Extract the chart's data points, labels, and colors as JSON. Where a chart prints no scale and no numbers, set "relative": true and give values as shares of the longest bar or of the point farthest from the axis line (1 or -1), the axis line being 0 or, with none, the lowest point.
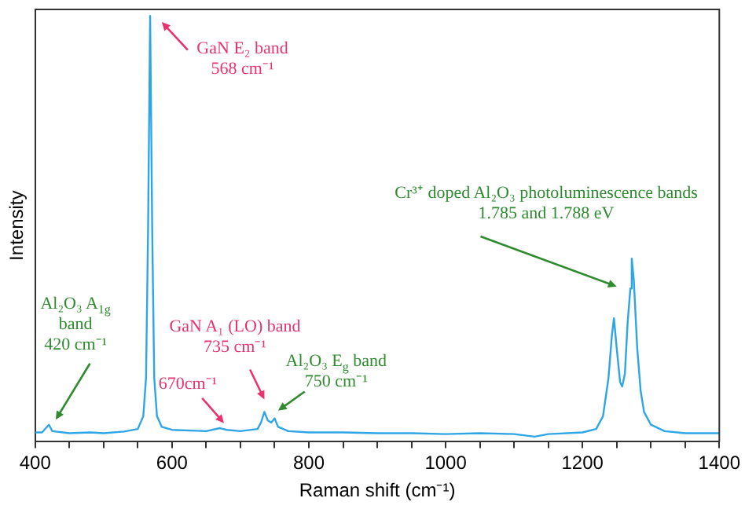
{
  "chart_data": {
    "type": "line",
    "relative": true,
    "xlabel": "Raman shift (cm⁻¹)",
    "ylabel": "Intensity",
    "xlim": [
      400,
      1400
    ],
    "xticks": [
      400,
      {
        "value": 450,
        "label": null
      },
      {
        "value": 500,
        "label": null
      },
      {
        "value": 550,
        "label": null
      },
      600,
      {
        "value": 650,
        "label": null
      },
      {
        "value": 700,
        "label": null
      },
      {
        "value": 750,
        "label": null
      },
      800,
      {
        "value": 850,
        "label": null
      },
      {
        "value": 900,
        "label": null
      },
      {
        "value": 950,
        "label": null
      },
      1000,
      {
        "value": 1050,
        "label": null
      },
      {
        "value": 1100,
        "label": null
      },
      {
        "value": 1150,
        "label": null
      },
      1200,
      {
        "value": 1250,
        "label": null
      },
      {
        "value": 1300,
        "label": null
      },
      {
        "value": 1350,
        "label": null
      },
      1400
    ],
    "grid": false,
    "legend": false,
    "marker": "none",
    "series": [
      {
        "color": "#2ea6e6",
        "x": [
          400,
          410,
          420,
          425,
          450,
          480,
          500,
          530,
          550,
          558,
          562,
          565,
          568,
          571,
          574,
          578,
          585,
          600,
          650,
          670,
          680,
          700,
          725,
          730,
          735,
          740,
          745,
          750,
          755,
          770,
          800,
          850,
          900,
          950,
          1000,
          1050,
          1100,
          1130,
          1150,
          1200,
          1220,
          1230,
          1238,
          1243,
          1246,
          1250,
          1255,
          1258,
          1262,
          1266,
          1270,
          1272,
          1275,
          1280,
          1285,
          1290,
          1300,
          1320,
          1350,
          1400
        ],
        "values": [
          0.022,
          0.022,
          0.04,
          0.025,
          0.02,
          0.022,
          0.02,
          0.024,
          0.03,
          0.06,
          0.15,
          0.5,
          1,
          0.5,
          0.15,
          0.06,
          0.035,
          0.028,
          0.025,
          0.032,
          0.028,
          0.025,
          0.03,
          0.045,
          0.07,
          0.05,
          0.045,
          0.055,
          0.035,
          0.025,
          0.022,
          0.022,
          0.02,
          0.02,
          0.018,
          0.02,
          0.018,
          0.012,
          0.018,
          0.022,
          0.03,
          0.06,
          0.15,
          0.25,
          0.29,
          0.22,
          0.14,
          0.13,
          0.16,
          0.28,
          0.36,
          0.43,
          0.38,
          0.22,
          0.12,
          0.07,
          0.04,
          0.025,
          0.02,
          0.02
        ]
      }
    ],
    "annotations": [
      "GaN E₂ band\n568 cm⁻¹",
      "Al₂O₃ A$_{1g}$\nband\n420 cm⁻¹",
      "670cm⁻¹",
      "GaN A₁ (LO) band\n735 cm⁻¹",
      "Al₂O₃ E$_{g}$ band\n750 cm⁻¹",
      "Cr³⁺ doped Al₂O₃ photoluminescence bands\n1.785 and 1.788 eV"
    ]
  }
}
